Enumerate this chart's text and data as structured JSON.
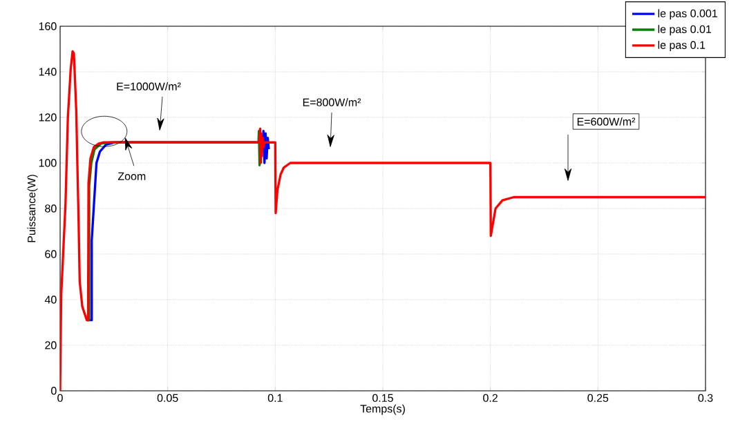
{
  "chart_data": {
    "type": "line",
    "xlabel": "Temps(s)",
    "ylabel": "Puissance(W)",
    "xlim": [
      0,
      0.3
    ],
    "ylim": [
      0,
      160
    ],
    "xticks": [
      0,
      0.05,
      0.1,
      0.15,
      0.2,
      0.25,
      0.3
    ],
    "yticks": [
      0,
      20,
      40,
      60,
      80,
      100,
      120,
      140,
      160
    ],
    "grid": true,
    "legend": "top right",
    "line_style": "solid",
    "marker": "none",
    "series": [
      {
        "name": "le pas 0.001",
        "color": "#0000ff",
        "x": [
          0.0124,
          0.0147,
          0.0147,
          0.0158,
          0.0169,
          0.0185,
          0.0213,
          0.025,
          0.0943,
          0.0945,
          0.095,
          0.0955,
          0.096,
          0.0965,
          0.097
        ],
        "values": [
          31,
          31,
          66,
          83,
          100,
          105,
          108,
          109,
          109,
          114,
          100,
          113,
          102,
          111,
          106
        ]
      },
      {
        "name": "le  pas 0.01",
        "color": "#008000",
        "x": [
          0.0124,
          0.0135,
          0.0135,
          0.0145,
          0.016,
          0.019,
          0.023,
          0.0922,
          0.0924,
          0.0927,
          0.093,
          0.0934
        ],
        "values": [
          31,
          31,
          90,
          100,
          106,
          108.5,
          109,
          109,
          114,
          99,
          113,
          100
        ]
      },
      {
        "name": "le pas 0.1",
        "color": "#ff0000",
        "x": [
          0,
          0.0005,
          0.0025,
          0.0036,
          0.0049,
          0.0058,
          0.0064,
          0.0075,
          0.008,
          0.0086,
          0.0091,
          0.0103,
          0.0124,
          0.013,
          0.0132,
          0.0141,
          0.0157,
          0.018,
          0.02,
          0.0925,
          0.093,
          0.0932,
          0.0935,
          0.0938,
          0.0942,
          0.0946,
          0.095,
          0.1,
          0.1002,
          0.101,
          0.1025,
          0.104,
          0.107,
          0.2,
          0.2002,
          0.2024,
          0.2056,
          0.2109,
          0.3
        ],
        "values": [
          0,
          42,
          82,
          120,
          141,
          149,
          148,
          123,
          100,
          74,
          48,
          37,
          31,
          31,
          91,
          102,
          107,
          108.5,
          109,
          109,
          115,
          100,
          113,
          103,
          111,
          107,
          109,
          109,
          78,
          88,
          95,
          98,
          100,
          100,
          68,
          80,
          83.6,
          85,
          85
        ]
      }
    ],
    "annotations": [
      "E=1000W/m²",
      {
        "text": "Zoom",
        "x": 0.0205,
        "y": 109
      },
      "E=800W/m²",
      "E=600W/m²"
    ]
  }
}
